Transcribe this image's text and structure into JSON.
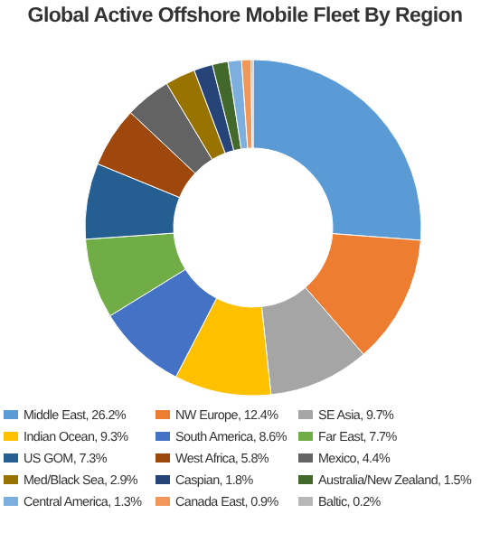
{
  "chart_data": {
    "type": "donut",
    "title": "Global Active Offshore Mobile Fleet By Region",
    "categories": [
      "Middle East, 26.2%",
      "NW Europe, 12.4%",
      "SE Asia, 9.7%",
      "Indian Ocean, 9.3%",
      "South America, 8.6%",
      "Far East, 7.7%",
      "US GOM, 7.3%",
      "West Africa, 5.8%",
      "Mexico, 4.4%",
      "Med/Black Sea, 2.9%",
      "Caspian, 1.8%",
      "Australia/New Zealand, 1.5%",
      "Central America, 1.3%",
      "Canada East, 0.9%",
      "Baltic, 0.2%"
    ],
    "values": [
      26.2,
      12.4,
      9.7,
      9.3,
      8.6,
      7.7,
      7.3,
      5.8,
      4.4,
      2.9,
      1.8,
      1.5,
      1.3,
      0.9,
      0.2
    ],
    "colors": [
      "#5b9bd5",
      "#ed7d31",
      "#a5a5a5",
      "#ffc000",
      "#4472c4",
      "#70ad47",
      "#255e91",
      "#9e480e",
      "#636363",
      "#997300",
      "#264478",
      "#43682b",
      "#7cafdd",
      "#f1975a",
      "#b7b7b7"
    ],
    "legend": "bottom"
  }
}
